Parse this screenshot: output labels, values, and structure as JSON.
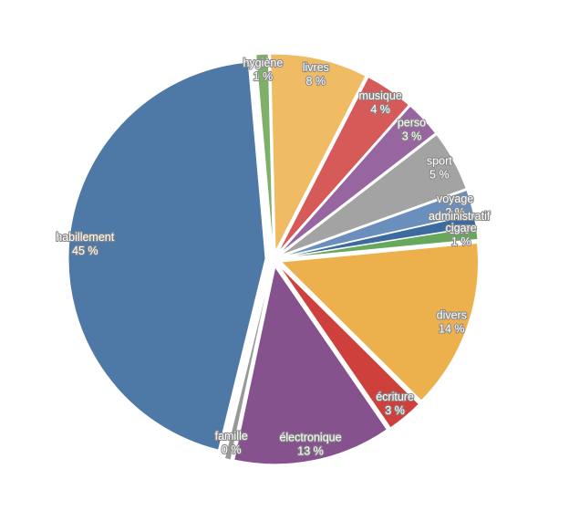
{
  "chart_data": {
    "type": "pie",
    "slices": [
      {
        "label": "hygiène",
        "value": 1,
        "value_label": "1 %",
        "color": "#7fb069"
      },
      {
        "label": "livres",
        "value": 8,
        "value_label": "8 %",
        "color": "#efbb63"
      },
      {
        "label": "musique",
        "value": 4,
        "value_label": "4 %",
        "color": "#d65a57"
      },
      {
        "label": "perso",
        "value": 3,
        "value_label": "3 %",
        "color": "#9766a0"
      },
      {
        "label": "sport",
        "value": 5,
        "value_label": "5 %",
        "color": "#a3a3a3"
      },
      {
        "label": "voyage",
        "value": 2,
        "value_label": "2 %",
        "color": "#6b8fbd"
      },
      {
        "label": "administratif",
        "value": 1,
        "value_label": "1 %",
        "color": "#3e6b9e"
      },
      {
        "label": "cigare",
        "value": 1,
        "value_label": "1 %",
        "color": "#68a85c"
      },
      {
        "label": "divers",
        "value": 14,
        "value_label": "14 %",
        "color": "#ecb04d"
      },
      {
        "label": "écriture",
        "value": 3,
        "value_label": "3 %",
        "color": "#cd403c"
      },
      {
        "label": "électronique",
        "value": 13,
        "value_label": "13 %",
        "color": "#86528e"
      },
      {
        "label": "famille",
        "value": 0.5,
        "value_label": "0 %",
        "color": "#999999"
      },
      {
        "label": "habillement",
        "value": 45,
        "value_label": "45 %",
        "color": "#4e79a7"
      }
    ]
  }
}
